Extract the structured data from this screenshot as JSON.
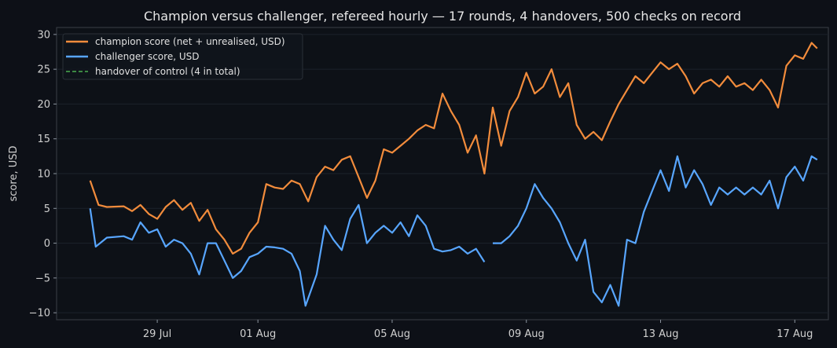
{
  "chart_data": {
    "type": "line",
    "title": "Champion versus challenger, refereed hourly — 17 rounds, 4 handovers, 500 checks on record",
    "xlabel": "",
    "ylabel": "score, USD",
    "x_range": [
      "2025-07-26",
      "2025-08-18"
    ],
    "ylim": [
      -11,
      31
    ],
    "x_ticks": [
      {
        "date": "2025-07-29",
        "label": "29 Jul"
      },
      {
        "date": "2025-08-01",
        "label": "01 Aug"
      },
      {
        "date": "2025-08-05",
        "label": "05 Aug"
      },
      {
        "date": "2025-08-09",
        "label": "09 Aug"
      },
      {
        "date": "2025-08-13",
        "label": "13 Aug"
      },
      {
        "date": "2025-08-17",
        "label": "17 Aug"
      }
    ],
    "y_ticks": [
      -10,
      -5,
      0,
      5,
      10,
      15,
      20,
      25,
      30
    ],
    "grid": true,
    "legend_position": "top-left",
    "colors": {
      "background": "#0d1017",
      "plot_background": "#0d1117",
      "champion": "#f28c3c",
      "challenger": "#58a6ff",
      "handover": "#4caf50"
    },
    "series": [
      {
        "name": "champion score (net + unrealised, USD)",
        "color": "#f28c3c",
        "points": [
          [
            "2025-07-27T00:00",
            9.0
          ],
          [
            "2025-07-27T06:00",
            5.5
          ],
          [
            "2025-07-27T12:00",
            5.2
          ],
          [
            "2025-07-28T00:00",
            5.3
          ],
          [
            "2025-07-28T06:00",
            4.6
          ],
          [
            "2025-07-28T12:00",
            5.5
          ],
          [
            "2025-07-28T18:00",
            4.2
          ],
          [
            "2025-07-29T00:00",
            3.5
          ],
          [
            "2025-07-29T06:00",
            5.2
          ],
          [
            "2025-07-29T12:00",
            6.2
          ],
          [
            "2025-07-29T18:00",
            4.8
          ],
          [
            "2025-07-30T00:00",
            5.8
          ],
          [
            "2025-07-30T06:00",
            3.2
          ],
          [
            "2025-07-30T12:00",
            4.8
          ],
          [
            "2025-07-30T18:00",
            2.0
          ],
          [
            "2025-07-31T00:00",
            0.5
          ],
          [
            "2025-07-31T06:00",
            -1.5
          ],
          [
            "2025-07-31T12:00",
            -0.8
          ],
          [
            "2025-07-31T18:00",
            1.5
          ],
          [
            "2025-08-01T00:00",
            3.0
          ],
          [
            "2025-08-01T06:00",
            8.5
          ],
          [
            "2025-08-01T12:00",
            8.0
          ],
          [
            "2025-08-01T18:00",
            7.8
          ],
          [
            "2025-08-02T00:00",
            9.0
          ],
          [
            "2025-08-02T06:00",
            8.5
          ],
          [
            "2025-08-02T12:00",
            6.0
          ],
          [
            "2025-08-02T18:00",
            9.5
          ],
          [
            "2025-08-03T00:00",
            11.0
          ],
          [
            "2025-08-03T06:00",
            10.5
          ],
          [
            "2025-08-03T12:00",
            12.0
          ],
          [
            "2025-08-03T18:00",
            12.5
          ],
          [
            "2025-08-04T00:00",
            9.5
          ],
          [
            "2025-08-04T06:00",
            6.5
          ],
          [
            "2025-08-04T12:00",
            9.0
          ],
          [
            "2025-08-04T18:00",
            13.5
          ],
          [
            "2025-08-05T00:00",
            13.0
          ],
          [
            "2025-08-05T06:00",
            14.0
          ],
          [
            "2025-08-05T12:00",
            15.0
          ],
          [
            "2025-08-05T18:00",
            16.2
          ],
          [
            "2025-08-06T00:00",
            17.0
          ],
          [
            "2025-08-06T06:00",
            16.5
          ],
          [
            "2025-08-06T12:00",
            21.5
          ],
          [
            "2025-08-06T18:00",
            19.0
          ],
          [
            "2025-08-07T00:00",
            17.0
          ],
          [
            "2025-08-07T06:00",
            13.0
          ],
          [
            "2025-08-07T12:00",
            15.5
          ],
          [
            "2025-08-07T18:00",
            10.0
          ],
          [
            "2025-08-08T00:00",
            19.5
          ],
          [
            "2025-08-08T06:00",
            14.0
          ],
          [
            "2025-08-08T12:00",
            19.0
          ],
          [
            "2025-08-08T18:00",
            21.0
          ],
          [
            "2025-08-09T00:00",
            24.5
          ],
          [
            "2025-08-09T06:00",
            21.5
          ],
          [
            "2025-08-09T12:00",
            22.5
          ],
          [
            "2025-08-09T18:00",
            25.0
          ],
          [
            "2025-08-10T00:00",
            21.0
          ],
          [
            "2025-08-10T06:00",
            23.0
          ],
          [
            "2025-08-10T12:00",
            17.0
          ],
          [
            "2025-08-10T18:00",
            15.0
          ],
          [
            "2025-08-11T00:00",
            16.0
          ],
          [
            "2025-08-11T06:00",
            14.8
          ],
          [
            "2025-08-11T12:00",
            17.5
          ],
          [
            "2025-08-11T18:00",
            20.0
          ],
          [
            "2025-08-12T00:00",
            22.0
          ],
          [
            "2025-08-12T06:00",
            24.0
          ],
          [
            "2025-08-12T12:00",
            23.0
          ],
          [
            "2025-08-12T18:00",
            24.5
          ],
          [
            "2025-08-13T00:00",
            26.0
          ],
          [
            "2025-08-13T06:00",
            25.0
          ],
          [
            "2025-08-13T12:00",
            25.8
          ],
          [
            "2025-08-13T18:00",
            24.0
          ],
          [
            "2025-08-14T00:00",
            21.5
          ],
          [
            "2025-08-14T06:00",
            23.0
          ],
          [
            "2025-08-14T12:00",
            23.5
          ],
          [
            "2025-08-14T18:00",
            22.5
          ],
          [
            "2025-08-15T00:00",
            24.0
          ],
          [
            "2025-08-15T06:00",
            22.5
          ],
          [
            "2025-08-15T12:00",
            23.0
          ],
          [
            "2025-08-15T18:00",
            22.0
          ],
          [
            "2025-08-16T00:00",
            23.5
          ],
          [
            "2025-08-16T06:00",
            22.0
          ],
          [
            "2025-08-16T12:00",
            19.5
          ],
          [
            "2025-08-16T18:00",
            25.5
          ],
          [
            "2025-08-17T00:00",
            27.0
          ],
          [
            "2025-08-17T06:00",
            26.5
          ],
          [
            "2025-08-17T12:00",
            28.8
          ],
          [
            "2025-08-17T16:00",
            28.0
          ]
        ]
      },
      {
        "name": "challenger score, USD",
        "color": "#58a6ff",
        "points": [
          [
            "2025-07-27T00:00",
            5.0
          ],
          [
            "2025-07-27T04:00",
            -0.5
          ],
          [
            "2025-07-27T12:00",
            0.8
          ],
          [
            "2025-07-28T00:00",
            1.0
          ],
          [
            "2025-07-28T06:00",
            0.5
          ],
          [
            "2025-07-28T12:00",
            3.0
          ],
          [
            "2025-07-28T18:00",
            1.5
          ],
          [
            "2025-07-29T00:00",
            2.0
          ],
          [
            "2025-07-29T06:00",
            -0.5
          ],
          [
            "2025-07-29T12:00",
            0.5
          ],
          [
            "2025-07-29T18:00",
            0.0
          ],
          [
            "2025-07-30T00:00",
            -1.5
          ],
          [
            "2025-07-30T06:00",
            -4.5
          ],
          [
            "2025-07-30T12:00",
            0.0
          ],
          [
            "2025-07-30T18:00",
            0.0
          ],
          [
            "2025-07-31T00:00",
            -2.5
          ],
          [
            "2025-07-31T06:00",
            -5.0
          ],
          [
            "2025-07-31T12:00",
            -4.0
          ],
          [
            "2025-07-31T18:00",
            -2.0
          ],
          [
            "2025-08-01T00:00",
            -1.5
          ],
          [
            "2025-08-01T06:00",
            -0.5
          ],
          [
            "2025-08-01T12:00",
            -0.6
          ],
          [
            "2025-08-01T18:00",
            -0.8
          ],
          [
            "2025-08-02T00:00",
            -1.5
          ],
          [
            "2025-08-02T06:00",
            -4.0
          ],
          [
            "2025-08-02T10:00",
            -9.0
          ],
          [
            "2025-08-02T18:00",
            -4.5
          ],
          [
            "2025-08-03T00:00",
            2.5
          ],
          [
            "2025-08-03T06:00",
            0.5
          ],
          [
            "2025-08-03T12:00",
            -1.0
          ],
          [
            "2025-08-03T18:00",
            3.5
          ],
          [
            "2025-08-04T00:00",
            5.5
          ],
          [
            "2025-08-04T06:00",
            0.0
          ],
          [
            "2025-08-04T12:00",
            1.5
          ],
          [
            "2025-08-04T18:00",
            2.5
          ],
          [
            "2025-08-05T00:00",
            1.5
          ],
          [
            "2025-08-05T06:00",
            3.0
          ],
          [
            "2025-08-05T12:00",
            1.0
          ],
          [
            "2025-08-05T18:00",
            4.0
          ],
          [
            "2025-08-06T00:00",
            2.5
          ],
          [
            "2025-08-06T06:00",
            -0.8
          ],
          [
            "2025-08-06T12:00",
            -1.2
          ],
          [
            "2025-08-06T18:00",
            -1.0
          ],
          [
            "2025-08-07T00:00",
            -0.5
          ],
          [
            "2025-08-07T06:00",
            -1.5
          ],
          [
            "2025-08-07T12:00",
            -0.8
          ],
          [
            "2025-08-07T18:00",
            -2.7
          ],
          null,
          [
            "2025-08-08T00:00",
            0.0
          ],
          [
            "2025-08-08T06:00",
            0.0
          ],
          [
            "2025-08-08T12:00",
            1.0
          ],
          [
            "2025-08-08T18:00",
            2.5
          ],
          [
            "2025-08-09T00:00",
            5.0
          ],
          [
            "2025-08-09T06:00",
            8.5
          ],
          [
            "2025-08-09T12:00",
            6.5
          ],
          [
            "2025-08-09T18:00",
            5.0
          ],
          [
            "2025-08-10T00:00",
            3.0
          ],
          [
            "2025-08-10T06:00",
            0.0
          ],
          [
            "2025-08-10T12:00",
            -2.5
          ],
          [
            "2025-08-10T18:00",
            0.5
          ],
          [
            "2025-08-11T00:00",
            -7.0
          ],
          [
            "2025-08-11T06:00",
            -8.5
          ],
          [
            "2025-08-11T12:00",
            -6.0
          ],
          [
            "2025-08-11T18:00",
            -9.0
          ],
          [
            "2025-08-12T00:00",
            0.5
          ],
          [
            "2025-08-12T06:00",
            0.0
          ],
          [
            "2025-08-12T12:00",
            4.5
          ],
          [
            "2025-08-12T18:00",
            7.5
          ],
          [
            "2025-08-13T00:00",
            10.5
          ],
          [
            "2025-08-13T06:00",
            7.5
          ],
          [
            "2025-08-13T12:00",
            12.5
          ],
          [
            "2025-08-13T18:00",
            8.0
          ],
          [
            "2025-08-14T00:00",
            10.5
          ],
          [
            "2025-08-14T06:00",
            8.5
          ],
          [
            "2025-08-14T12:00",
            5.5
          ],
          [
            "2025-08-14T18:00",
            8.0
          ],
          [
            "2025-08-15T00:00",
            7.0
          ],
          [
            "2025-08-15T06:00",
            8.0
          ],
          [
            "2025-08-15T12:00",
            7.0
          ],
          [
            "2025-08-15T18:00",
            8.0
          ],
          [
            "2025-08-16T00:00",
            7.0
          ],
          [
            "2025-08-16T06:00",
            9.0
          ],
          [
            "2025-08-16T12:00",
            5.0
          ],
          [
            "2025-08-16T18:00",
            9.5
          ],
          [
            "2025-08-17T00:00",
            11.0
          ],
          [
            "2025-08-17T06:00",
            9.0
          ],
          [
            "2025-08-17T12:00",
            12.5
          ],
          [
            "2025-08-17T16:00",
            12.0
          ]
        ]
      }
    ],
    "handover_legend": "handover of control (4 in total)"
  }
}
